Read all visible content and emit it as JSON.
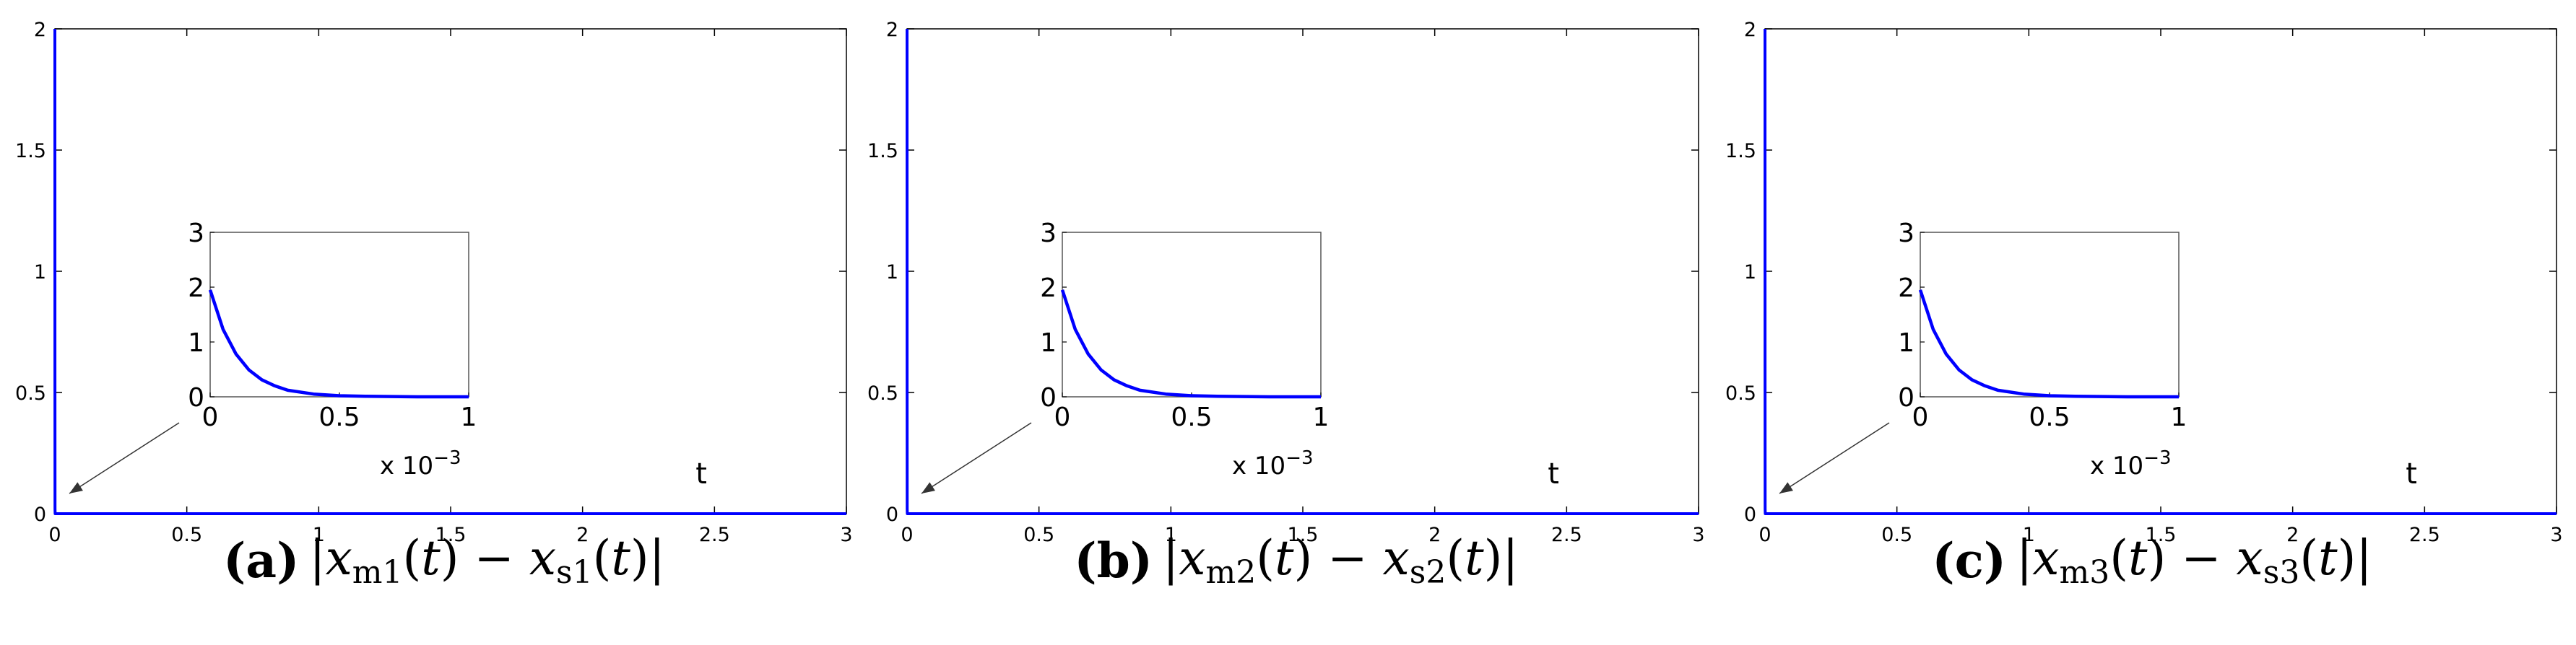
{
  "chart_data": [
    {
      "type": "line",
      "main": {
        "xlim": [
          0,
          3
        ],
        "ylim": [
          0,
          2
        ],
        "xticks": [
          0,
          0.5,
          1,
          1.5,
          2,
          2.5,
          3
        ],
        "xtick_labels": [
          "0",
          "0.5",
          "1",
          "1.5",
          "2",
          "2.5",
          "3"
        ],
        "yticks": [
          0,
          0.5,
          1,
          1.5,
          2
        ],
        "ytick_labels": [
          "0",
          "0.5",
          "1",
          "1.5",
          "2"
        ],
        "xlabel": "t",
        "series": [
          {
            "x": [
              0,
              0.0002,
              0.0005,
              0.001,
              3
            ],
            "y": [
              2,
              0.6,
              0.02,
              0,
              0
            ]
          }
        ]
      },
      "inset": {
        "xlim": [
          0,
          1
        ],
        "ylim": [
          0,
          3
        ],
        "xticks": [
          0,
          0.5,
          1
        ],
        "xtick_labels": [
          "0",
          "0.5",
          "1"
        ],
        "yticks": [
          0,
          1,
          2,
          3
        ],
        "ytick_labels": [
          "0",
          "1",
          "2",
          "3"
        ],
        "x_scale_base": "x 10",
        "x_scale_exp": "−3",
        "series": [
          {
            "x": [
              0,
              0.05,
              0.1,
              0.15,
              0.2,
              0.25,
              0.3,
              0.4,
              0.5,
              0.6,
              0.8,
              1.0
            ],
            "y": [
              1.95,
              1.23,
              0.78,
              0.49,
              0.31,
              0.2,
              0.12,
              0.05,
              0.02,
              0.01,
              0,
              0
            ]
          }
        ]
      },
      "caption": {
        "label": "(a)",
        "m": "m1",
        "s": "s1"
      }
    },
    {
      "type": "line",
      "main": {
        "xlim": [
          0,
          3
        ],
        "ylim": [
          0,
          2
        ],
        "xticks": [
          0,
          0.5,
          1,
          1.5,
          2,
          2.5,
          3
        ],
        "xtick_labels": [
          "0",
          "0.5",
          "1",
          "1.5",
          "2",
          "2.5",
          "3"
        ],
        "yticks": [
          0,
          0.5,
          1,
          1.5,
          2
        ],
        "ytick_labels": [
          "0",
          "0.5",
          "1",
          "1.5",
          "2"
        ],
        "xlabel": "t",
        "series": [
          {
            "x": [
              0,
              0.0002,
              0.0005,
              0.001,
              3
            ],
            "y": [
              2,
              0.6,
              0.02,
              0,
              0
            ]
          }
        ]
      },
      "inset": {
        "xlim": [
          0,
          1
        ],
        "ylim": [
          0,
          3
        ],
        "xticks": [
          0,
          0.5,
          1
        ],
        "xtick_labels": [
          "0",
          "0.5",
          "1"
        ],
        "yticks": [
          0,
          1,
          2,
          3
        ],
        "ytick_labels": [
          "0",
          "1",
          "2",
          "3"
        ],
        "x_scale_base": "x 10",
        "x_scale_exp": "−3",
        "series": [
          {
            "x": [
              0,
              0.05,
              0.1,
              0.15,
              0.2,
              0.25,
              0.3,
              0.4,
              0.5,
              0.6,
              0.8,
              1.0
            ],
            "y": [
              1.95,
              1.23,
              0.78,
              0.49,
              0.31,
              0.2,
              0.12,
              0.05,
              0.02,
              0.01,
              0,
              0
            ]
          }
        ]
      },
      "caption": {
        "label": "(b)",
        "m": "m2",
        "s": "s2"
      }
    },
    {
      "type": "line",
      "main": {
        "xlim": [
          0,
          3
        ],
        "ylim": [
          0,
          2
        ],
        "xticks": [
          0,
          0.5,
          1,
          1.5,
          2,
          2.5,
          3
        ],
        "xtick_labels": [
          "0",
          "0.5",
          "1",
          "1.5",
          "2",
          "2.5",
          "3"
        ],
        "yticks": [
          0,
          0.5,
          1,
          1.5,
          2
        ],
        "ytick_labels": [
          "0",
          "0.5",
          "1",
          "1.5",
          "2"
        ],
        "xlabel": "t",
        "series": [
          {
            "x": [
              0,
              0.0002,
              0.0005,
              0.001,
              3
            ],
            "y": [
              2,
              0.6,
              0.02,
              0,
              0
            ]
          }
        ]
      },
      "inset": {
        "xlim": [
          0,
          1
        ],
        "ylim": [
          0,
          3
        ],
        "xticks": [
          0,
          0.5,
          1
        ],
        "xtick_labels": [
          "0",
          "0.5",
          "1"
        ],
        "yticks": [
          0,
          1,
          2,
          3
        ],
        "ytick_labels": [
          "0",
          "1",
          "2",
          "3"
        ],
        "x_scale_base": "x 10",
        "x_scale_exp": "−3",
        "series": [
          {
            "x": [
              0,
              0.05,
              0.1,
              0.15,
              0.2,
              0.25,
              0.3,
              0.4,
              0.5,
              0.6,
              0.8,
              1.0
            ],
            "y": [
              1.95,
              1.23,
              0.78,
              0.49,
              0.31,
              0.2,
              0.12,
              0.05,
              0.02,
              0.01,
              0,
              0
            ]
          }
        ]
      },
      "caption": {
        "label": "(c)",
        "m": "m3",
        "s": "s3"
      }
    }
  ],
  "colors": {
    "line": "#0000ff",
    "axes": "#000000",
    "inset_frame": "#555555"
  },
  "captions": [
    {
      "label": "(a)",
      "x_pre": "x",
      "m_sub": "m1",
      "s_sub": "s1",
      "t": "t"
    },
    {
      "label": "(b)",
      "x_pre": "x",
      "m_sub": "m2",
      "s_sub": "s2",
      "t": "t"
    },
    {
      "label": "(c)",
      "x_pre": "x",
      "m_sub": "m3",
      "s_sub": "s3",
      "t": "t"
    }
  ]
}
